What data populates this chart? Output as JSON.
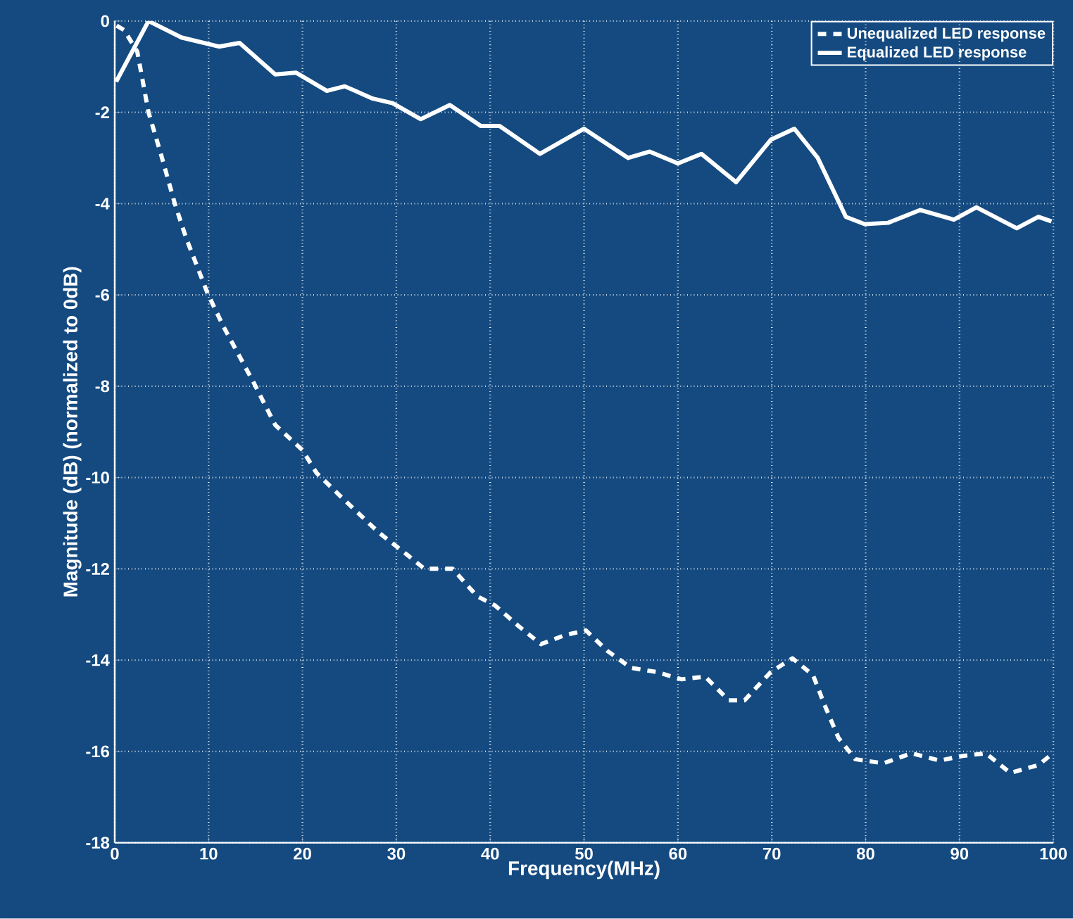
{
  "chart_data": {
    "type": "line",
    "xlabel": "Frequency(MHz)",
    "ylabel": "Magnitude (dB) (normalized to 0dB)",
    "xlim": [
      0,
      100
    ],
    "ylim": [
      -18,
      0
    ],
    "xticks": [
      0,
      10,
      20,
      30,
      40,
      50,
      60,
      70,
      80,
      90,
      100
    ],
    "yticks": [
      -18,
      -16,
      -14,
      -12,
      -10,
      -8,
      -6,
      -4,
      -2,
      0
    ],
    "grid": true,
    "legend": "top right",
    "series": [
      {
        "name": "Unequalized LED response",
        "color": "#ffffff",
        "line_style": "dashed",
        "x": [
          0.2,
          1,
          2.4,
          3.6,
          4.9,
          6.4,
          7.6,
          9.9,
          11.6,
          14.8,
          17.1,
          20,
          21.5,
          24,
          28.1,
          31.2,
          33,
          36,
          38.6,
          40.5,
          43,
          45.4,
          48,
          50.2,
          52.5,
          55,
          57.7,
          60.4,
          62.9,
          65.4,
          67.1,
          69.9,
          72.2,
          74.4,
          75.6,
          77.1,
          78.9,
          81.9,
          84.9,
          87.9,
          90.3,
          92.8,
          95.4,
          98.4,
          99.6
        ],
        "values": [
          -0.1,
          -0.2,
          -0.67,
          -2,
          -2.9,
          -4,
          -4.75,
          -5.97,
          -6.7,
          -7.92,
          -8.85,
          -9.4,
          -9.9,
          -10.4,
          -11.2,
          -11.7,
          -12,
          -12,
          -12.6,
          -12.8,
          -13.25,
          -13.65,
          -13.45,
          -13.35,
          -13.8,
          -14.17,
          -14.26,
          -14.42,
          -14.36,
          -14.88,
          -14.88,
          -14.26,
          -13.96,
          -14.33,
          -14.97,
          -15.7,
          -16.17,
          -16.26,
          -16.04,
          -16.2,
          -16.1,
          -16.04,
          -16.47,
          -16.3,
          -16.1
        ]
      },
      {
        "name": "Equalized LED response",
        "color": "#ffffff",
        "line_style": "solid",
        "x": [
          0.15,
          3.6,
          7.1,
          11.1,
          13.3,
          17.1,
          19.3,
          22.6,
          24.5,
          27.5,
          29.6,
          32.6,
          35.7,
          39,
          41,
          45.3,
          50,
          54.7,
          57,
          60,
          62.5,
          66.2,
          69.9,
          72.4,
          74.9,
          77.9,
          79.9,
          82.4,
          85.8,
          89.4,
          91.8,
          96.1,
          98.4,
          99.8
        ],
        "values": [
          -1.33,
          0,
          -0.36,
          -0.56,
          -0.48,
          -1.17,
          -1.13,
          -1.53,
          -1.43,
          -1.7,
          -1.8,
          -2.15,
          -1.84,
          -2.3,
          -2.3,
          -2.91,
          -2.36,
          -3,
          -2.86,
          -3.12,
          -2.91,
          -3.53,
          -2.6,
          -2.36,
          -3,
          -4.29,
          -4.45,
          -4.42,
          -4.14,
          -4.35,
          -4.08,
          -4.54,
          -4.29,
          -4.39
        ]
      }
    ]
  }
}
